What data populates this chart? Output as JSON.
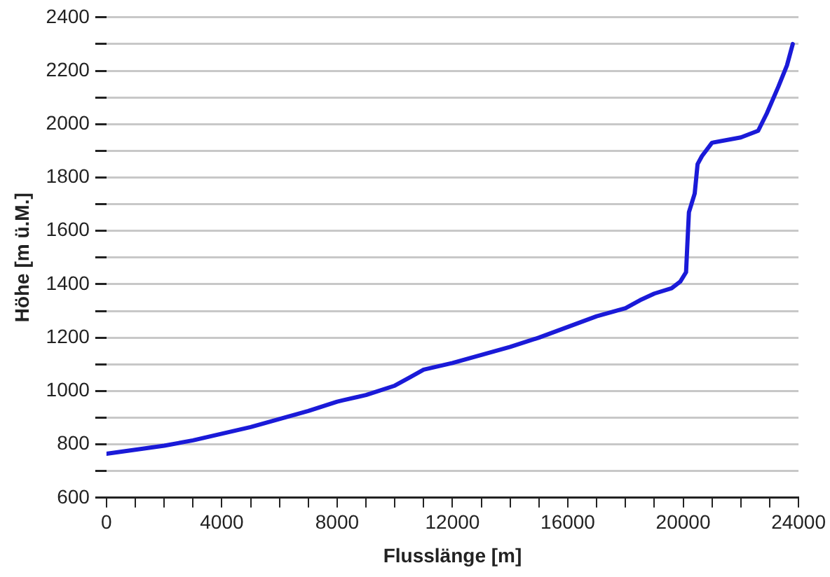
{
  "chart_data": {
    "type": "line",
    "xlabel": "Flusslänge [m]",
    "ylabel": "Höhe [m ü.M.]",
    "x": [
      0,
      1000,
      2000,
      3000,
      4000,
      5000,
      6000,
      7000,
      8000,
      8200,
      9000,
      10000,
      10500,
      11000,
      12000,
      13000,
      14000,
      15000,
      16000,
      17000,
      18000,
      18500,
      19000,
      19600,
      19900,
      20100,
      20150,
      20200,
      20400,
      20500,
      20650,
      21000,
      22000,
      22600,
      22900,
      23300,
      23600,
      23800
    ],
    "series": [
      {
        "color": "#1a1ad8",
        "values": [
          765,
          780,
          795,
          815,
          840,
          865,
          895,
          925,
          960,
          965,
          985,
          1020,
          1050,
          1080,
          1105,
          1135,
          1165,
          1200,
          1240,
          1280,
          1310,
          1340,
          1365,
          1385,
          1410,
          1445,
          1560,
          1670,
          1740,
          1850,
          1880,
          1930,
          1950,
          1975,
          2040,
          2140,
          2220,
          2300
        ]
      }
    ],
    "xlim": [
      0,
      24000
    ],
    "ylim": [
      600,
      2400
    ],
    "xticks": [
      0,
      {
        "value": 1000,
        "label": null
      },
      {
        "value": 2000,
        "label": null
      },
      {
        "value": 3000,
        "label": null
      },
      4000,
      {
        "value": 5000,
        "label": null
      },
      {
        "value": 6000,
        "label": null
      },
      {
        "value": 7000,
        "label": null
      },
      8000,
      {
        "value": 9000,
        "label": null
      },
      {
        "value": 10000,
        "label": null
      },
      {
        "value": 11000,
        "label": null
      },
      12000,
      {
        "value": 13000,
        "label": null
      },
      {
        "value": 14000,
        "label": null
      },
      {
        "value": 15000,
        "label": null
      },
      16000,
      {
        "value": 17000,
        "label": null
      },
      {
        "value": 18000,
        "label": null
      },
      {
        "value": 19000,
        "label": null
      },
      20000,
      {
        "value": 21000,
        "label": null
      },
      {
        "value": 22000,
        "label": null
      },
      {
        "value": 23000,
        "label": null
      },
      24000
    ],
    "yticks": [
      600,
      {
        "value": 700,
        "label": null
      },
      800,
      {
        "value": 900,
        "label": null
      },
      1000,
      {
        "value": 1100,
        "label": null
      },
      1200,
      {
        "value": 1300,
        "label": null
      },
      1400,
      {
        "value": 1500,
        "label": null
      },
      1600,
      {
        "value": 1700,
        "label": null
      },
      1800,
      {
        "value": 1900,
        "label": null
      },
      2000,
      {
        "value": 2100,
        "label": null
      },
      2200,
      {
        "value": 2300,
        "label": null
      },
      2400
    ],
    "grid": "y",
    "legend": false,
    "marker": "none",
    "line_style": "solid"
  }
}
